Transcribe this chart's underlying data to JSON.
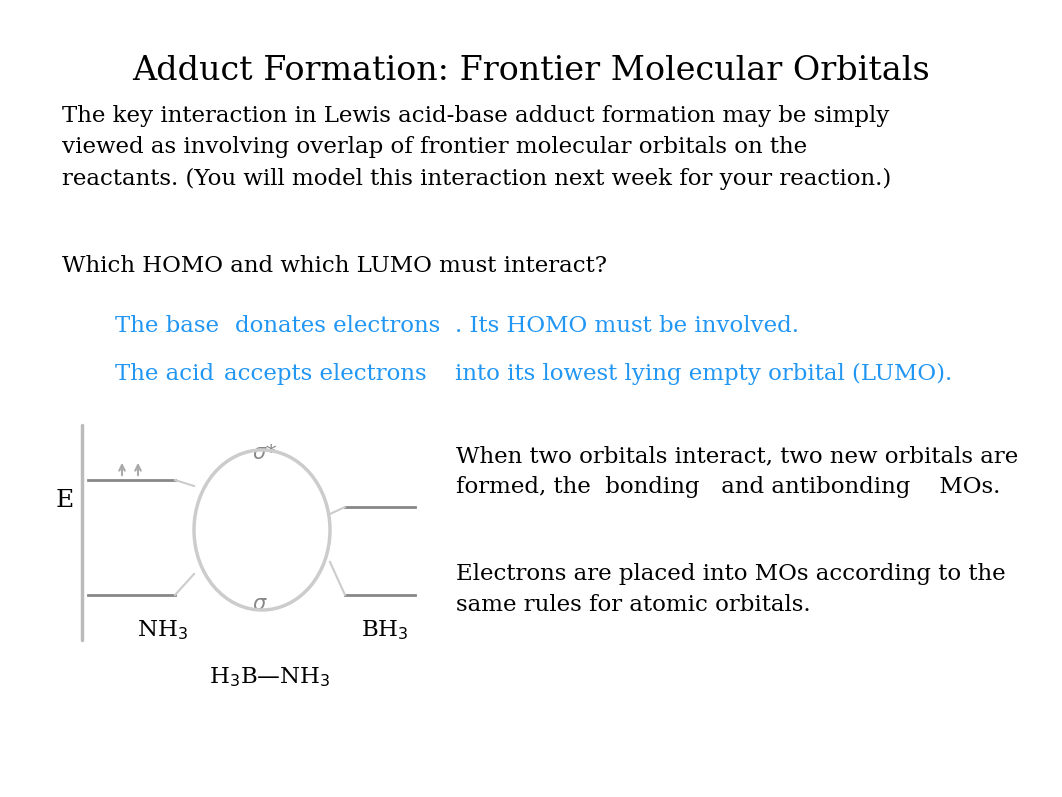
{
  "title": "Adduct Formation: Frontier Molecular Orbitals",
  "title_fontsize": 24,
  "bg_color": "#ffffff",
  "text_color": "#000000",
  "blue_color": "#2196F3",
  "body_text_1": "The key interaction in Lewis acid-base adduct formation may be simply\nviewed as involving overlap of frontier molecular orbitals on the\nreactants. (You will model this interaction next week for your reaction.)",
  "body_text_1_fontsize": 16.5,
  "body_text_2": "Which HOMO and which LUMO must interact?",
  "body_text_2_fontsize": 16.5,
  "blue_fontsize": 16.5,
  "right_text_1": "When two orbitals interact, two new orbitals are\nformed, the  bonding   and antibonding    MOs.",
  "right_text_2": "Electrons are placed into MOs according to the\nsame rules for atomic orbitals.",
  "body_fontsize": 16.5,
  "label_fontsize": 16.5,
  "E_fontsize": 18
}
